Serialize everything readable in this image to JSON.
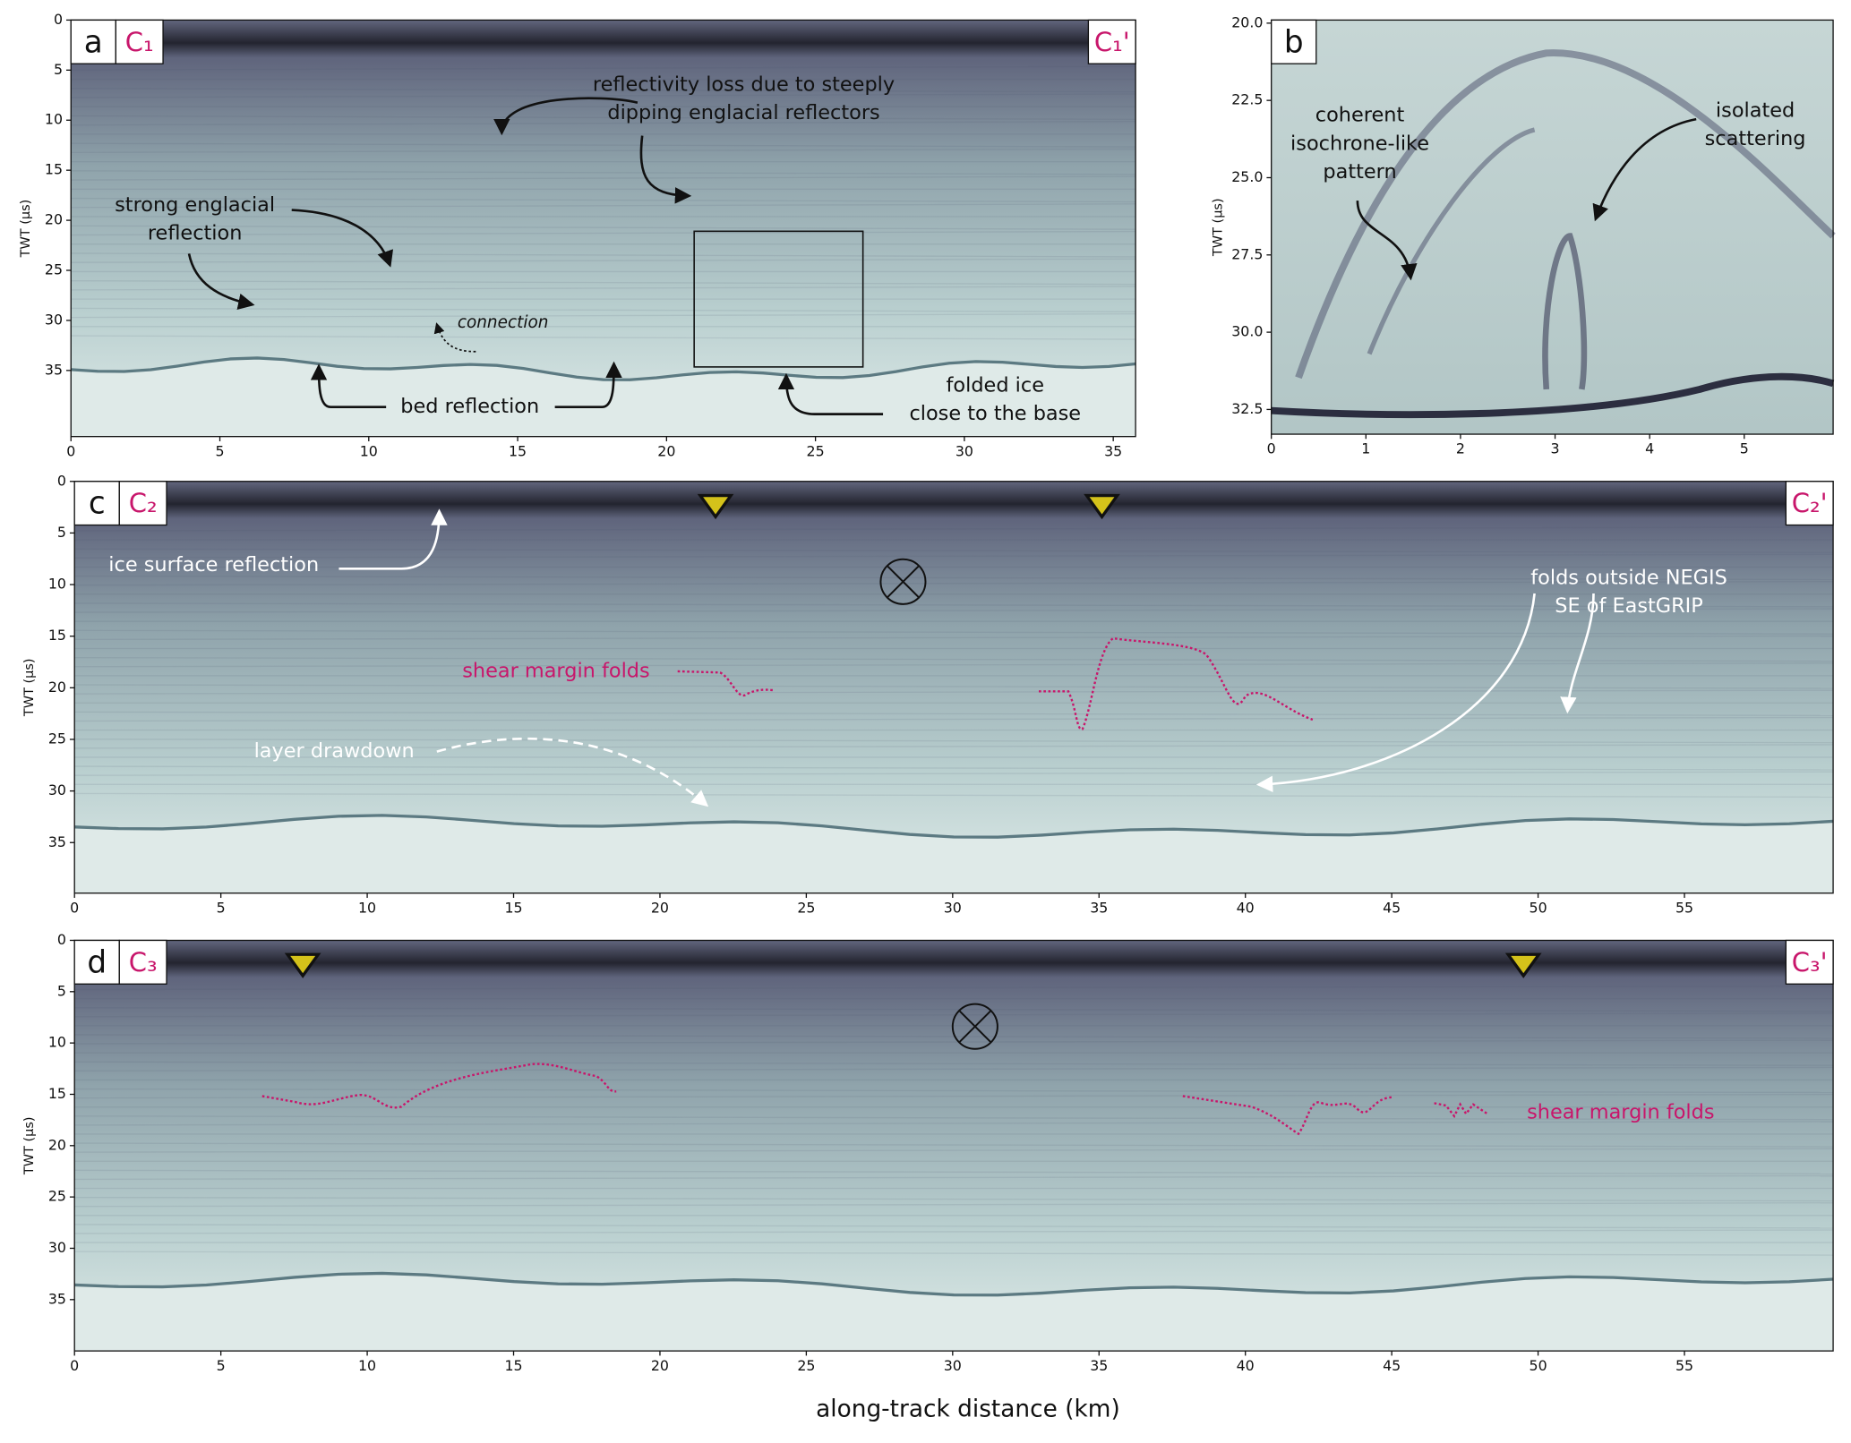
{
  "x_label": "along-track distance (km)",
  "chart_data": [
    {
      "type": "radargram",
      "panel": "a",
      "profile_start": "C₁",
      "profile_end": "C₁'",
      "y_label": "TWT (µs)",
      "xlim": [
        0,
        35.75
      ],
      "xticks": [
        0,
        5,
        10,
        15,
        20,
        25,
        30,
        35
      ],
      "ylim": [
        41.6,
        0
      ],
      "yticks": [
        0,
        5,
        10,
        15,
        20,
        25,
        30,
        35
      ],
      "annotations": [
        {
          "lines": [
            "reflectivity loss due to steeply",
            "dipping englacial reflectors"
          ],
          "color": "#111111"
        },
        {
          "lines": [
            "strong englacial",
            "reflection"
          ],
          "color": "#111111"
        },
        {
          "lines": [
            "connection"
          ],
          "color": "#111111"
        },
        {
          "lines": [
            "bed reflection"
          ],
          "color": "#111111"
        },
        {
          "lines": [
            "folded ice",
            "close to the base"
          ],
          "color": "#111111"
        }
      ]
    },
    {
      "type": "radargram",
      "panel": "b",
      "y_label": "TWT (µs)",
      "xlim": [
        0,
        5.94
      ],
      "xticks": [
        0,
        1,
        2,
        3,
        4,
        5
      ],
      "ylim": [
        33.3,
        19.9
      ],
      "yticks": [
        {
          "value": 20,
          "label": "20.0"
        },
        22.5,
        {
          "value": 25,
          "label": "25.0"
        },
        27.5,
        {
          "value": 30,
          "label": "30.0"
        },
        32.5
      ],
      "annotations": [
        {
          "lines": [
            "coherent",
            "isochrone-like",
            "pattern"
          ],
          "color": "#111111"
        },
        {
          "lines": [
            "isolated",
            "scattering"
          ],
          "color": "#111111"
        }
      ]
    },
    {
      "type": "radargram",
      "panel": "c",
      "profile_start": "C₂",
      "profile_end": "C₂'",
      "y_label": "TWT (µs)",
      "xlim": [
        0,
        60.08
      ],
      "xticks": [
        0,
        5,
        10,
        15,
        20,
        25,
        30,
        35,
        40,
        45,
        50,
        55
      ],
      "ylim": [
        39.9,
        0
      ],
      "yticks": [
        0,
        5,
        10,
        15,
        20,
        25,
        30,
        35
      ],
      "markers": [
        21.9,
        35.1
      ],
      "marker_color": "#d4c21a",
      "annotations": [
        {
          "lines": [
            "ice surface reflection"
          ],
          "color": "#ffffff"
        },
        {
          "lines": [
            "folds outside NEGIS",
            "SE of EastGRIP"
          ],
          "color": "#ffffff"
        },
        {
          "lines": [
            "shear margin folds"
          ],
          "color": "#c8166b"
        },
        {
          "lines": [
            "layer drawdown"
          ],
          "color": "#ffffff"
        }
      ]
    },
    {
      "type": "radargram",
      "panel": "d",
      "profile_start": "C₃",
      "profile_end": "C₃'",
      "y_label": "TWT (µs)",
      "xlim": [
        0,
        60.08
      ],
      "xticks": [
        0,
        5,
        10,
        15,
        20,
        25,
        30,
        35,
        40,
        45,
        50,
        55
      ],
      "ylim": [
        40,
        0
      ],
      "yticks": [
        0,
        5,
        10,
        15,
        20,
        25,
        30,
        35
      ],
      "markers": [
        7.8,
        49.5
      ],
      "marker_color": "#d4c21a",
      "annotations": [
        {
          "lines": [
            "shear margin folds"
          ],
          "color": "#c8166b"
        }
      ]
    }
  ]
}
